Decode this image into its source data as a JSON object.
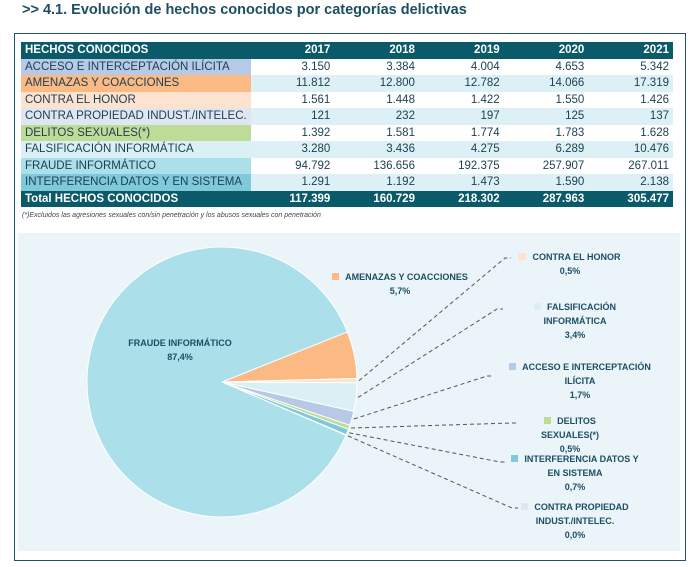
{
  "title": ">> 4.1. Evolución de hechos conocidos por categorías delictivas",
  "table": {
    "header": [
      "HECHOS CONOCIDOS",
      "2017",
      "2018",
      "2019",
      "2020",
      "2021"
    ],
    "rows": [
      {
        "label": "ACCESO  E INTERCEPTACIÓN ILÍCITA",
        "color": "#b6c9e6",
        "values": [
          "3.150",
          "3.384",
          "4.004",
          "4.653",
          "5.342"
        ]
      },
      {
        "label": "AMENAZAS Y COACCIONES",
        "color": "#fbb984",
        "values": [
          "11.812",
          "12.800",
          "12.782",
          "14.066",
          "17.319"
        ]
      },
      {
        "label": "CONTRA EL HONOR",
        "color": "#fde3cf",
        "values": [
          "1.561",
          "1.448",
          "1.422",
          "1.550",
          "1.426"
        ]
      },
      {
        "label": "CONTRA PROPIEDAD INDUST./INTELEC.",
        "color": "#dfe6f2",
        "values": [
          "121",
          "232",
          "197",
          "125",
          "137"
        ]
      },
      {
        "label": "DELITOS SEXUALES(*)",
        "color": "#bfdc96",
        "values": [
          "1.392",
          "1.581",
          "1.774",
          "1.783",
          "1.628"
        ]
      },
      {
        "label": "FALSIFICACIÓN INFORMÁTICA",
        "color": "#dbf0f5",
        "values": [
          "3.280",
          "3.436",
          "4.275",
          "6.289",
          "10.476"
        ]
      },
      {
        "label": "FRAUDE INFORMÁTICO",
        "color": "#abdfe9",
        "values": [
          "94.792",
          "136.656",
          "192.375",
          "257.907",
          "267.011"
        ]
      },
      {
        "label": "INTERFERENCIA DATOS Y EN SISTEMA",
        "color": "#7fc9da",
        "values": [
          "1.291",
          "1.192",
          "1.473",
          "1.590",
          "2.138"
        ]
      }
    ],
    "total": {
      "label": "Total HECHOS CONOCIDOS",
      "values": [
        "117.399",
        "160.729",
        "218.302",
        "287.963",
        "305.477"
      ]
    }
  },
  "note": "(*)Excluidos las agresiones sexuales con/sin penetración y los abusos sexuales con penetración",
  "chart_data": {
    "type": "pie",
    "slices": [
      {
        "name": "AMENAZAS Y COACCIONES",
        "value": 5.7,
        "label": "5,7%",
        "color": "#fbb984"
      },
      {
        "name": "CONTRA EL HONOR",
        "value": 0.5,
        "label": "0,5%",
        "color": "#fde3cf"
      },
      {
        "name": "FALSIFICACIÓN INFORMÁTICA",
        "value": 3.4,
        "label": "3,4%",
        "color": "#dbf0f5"
      },
      {
        "name": "ACCESO  E INTERCEPTACIÓN ILÍCITA",
        "value": 1.7,
        "label": "1,7%",
        "color": "#b6c9e6"
      },
      {
        "name": "DELITOS SEXUALES(*)",
        "value": 0.5,
        "label": "0,5%",
        "color": "#bfdc96"
      },
      {
        "name": "INTERFERENCIA DATOS Y EN SISTEMA",
        "value": 0.7,
        "label": "0,7%",
        "color": "#7fc9da"
      },
      {
        "name": "CONTRA PROPIEDAD INDUST./INTELEC.",
        "value": 0.0,
        "label": "0,0%",
        "color": "#dfe6f2"
      },
      {
        "name": "FRAUDE INFORMÁTICO",
        "value": 87.4,
        "label": "87,4%",
        "color": "#abdfe9"
      }
    ]
  }
}
